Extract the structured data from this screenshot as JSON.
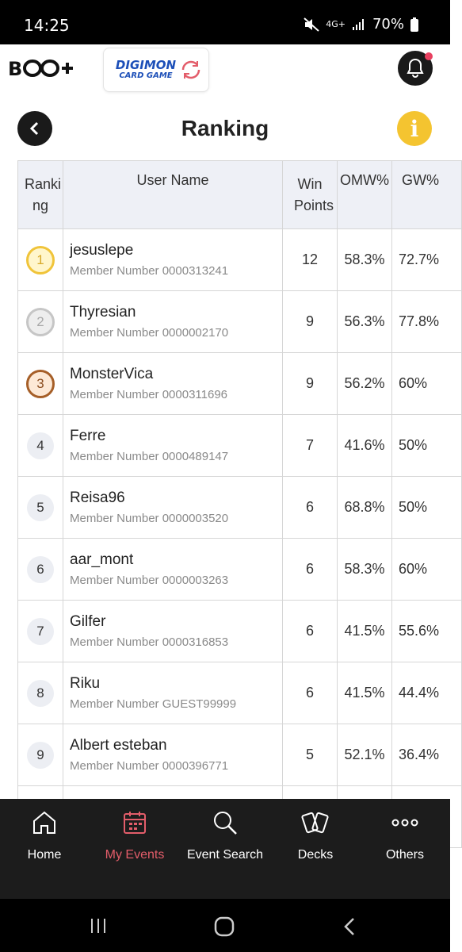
{
  "status": {
    "time": "14:25",
    "network": "4G+",
    "battery": "70%"
  },
  "header": {
    "logo": "B CG+",
    "event_logo_title": "DIGIMON",
    "event_logo_sub": "CARD GAME"
  },
  "page": {
    "title": "Ranking"
  },
  "table": {
    "headers": {
      "rank": "Ranki ng",
      "user": "User Name",
      "win": "Win Points",
      "omw": "OMW%",
      "gw": "GW%"
    },
    "rows": [
      {
        "rank": "1",
        "name": "jesuslepe",
        "member": "Member Number 0000313241",
        "win": "12",
        "omw": "58.3%",
        "gw": "72.7%"
      },
      {
        "rank": "2",
        "name": "Thyresian",
        "member": "Member Number 0000002170",
        "win": "9",
        "omw": "56.3%",
        "gw": "77.8%"
      },
      {
        "rank": "3",
        "name": "MonsterVica",
        "member": "Member Number 0000311696",
        "win": "9",
        "omw": "56.2%",
        "gw": "60%"
      },
      {
        "rank": "4",
        "name": "Ferre",
        "member": "Member Number 0000489147",
        "win": "7",
        "omw": "41.6%",
        "gw": "50%"
      },
      {
        "rank": "5",
        "name": "Reisa96",
        "member": "Member Number 0000003520",
        "win": "6",
        "omw": "68.8%",
        "gw": "50%"
      },
      {
        "rank": "6",
        "name": "aar_mont",
        "member": "Member Number 0000003263",
        "win": "6",
        "omw": "58.3%",
        "gw": "60%"
      },
      {
        "rank": "7",
        "name": "Gilfer",
        "member": "Member Number 0000316853",
        "win": "6",
        "omw": "41.5%",
        "gw": "55.6%"
      },
      {
        "rank": "8",
        "name": "Riku",
        "member": "Member Number GUEST99999",
        "win": "6",
        "omw": "41.5%",
        "gw": "44.4%"
      },
      {
        "rank": "9",
        "name": "Albert esteban",
        "member": "Member Number 0000396771",
        "win": "5",
        "omw": "52.1%",
        "gw": "36.4%"
      }
    ]
  },
  "nav": {
    "items": [
      {
        "label": "Home",
        "icon": "home-icon"
      },
      {
        "label": "My Events",
        "icon": "calendar-icon"
      },
      {
        "label": "Event Search",
        "icon": "search-icon"
      },
      {
        "label": "Decks",
        "icon": "cards-icon"
      },
      {
        "label": "Others",
        "icon": "more-icon"
      }
    ]
  },
  "colors": {
    "active": "#e35d6a",
    "info": "#f4c430",
    "nav_bg": "#1c1c1c"
  }
}
